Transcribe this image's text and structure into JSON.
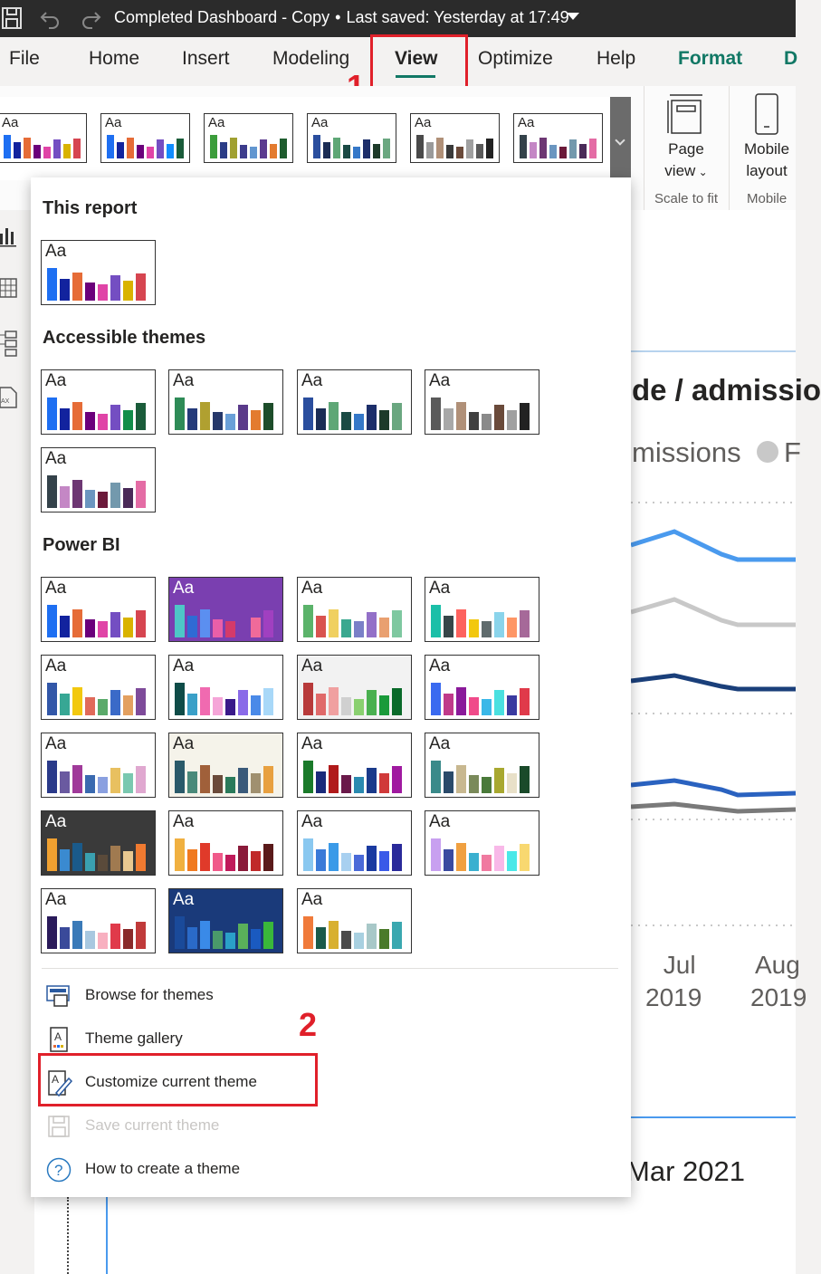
{
  "titlebar": {
    "doc_name": "Completed Dashboard - Copy",
    "separator": "•",
    "saved": "Last saved: Yesterday at 17:49"
  },
  "tabs": [
    {
      "label": "File"
    },
    {
      "label": "Home"
    },
    {
      "label": "Insert"
    },
    {
      "label": "Modeling"
    },
    {
      "label": "View"
    },
    {
      "label": "Optimize"
    },
    {
      "label": "Help"
    },
    {
      "label": "Format"
    },
    {
      "label": "D"
    }
  ],
  "annotations": {
    "step1": "1",
    "step2": "2"
  },
  "ribbon": {
    "page_view": {
      "line1": "Page",
      "line2": "view"
    },
    "mobile_layout": {
      "line1": "Mobile",
      "line2": "layout"
    },
    "group_scale": "Scale to fit",
    "group_mobile": "Mobile"
  },
  "theme_aa": "Aa",
  "ribbon_themes": [
    {
      "bars": [
        "#1e6ff2",
        "#12239e",
        "#e66c37",
        "#6b007b",
        "#e044a7",
        "#744ec2",
        "#d9b300",
        "#d64550"
      ]
    },
    {
      "bars": [
        "#1e6ff2",
        "#12239e",
        "#e66c37",
        "#6b007b",
        "#e044a7",
        "#744ec2",
        "#118dff",
        "#1a5c3a"
      ]
    },
    {
      "bars": [
        "#3b9d3b",
        "#2a3c86",
        "#a0a030",
        "#3c3c8c",
        "#6296d0",
        "#5b3a8f",
        "#e37b2f",
        "#1e5c2e"
      ]
    },
    {
      "bars": [
        "#2a4e9e",
        "#1a2c55",
        "#5ea776",
        "#1a4a44",
        "#3578c8",
        "#1c2e6a",
        "#1d3a2a",
        "#6aa780"
      ]
    },
    {
      "bars": [
        "#4a4a4a",
        "#9a9a9a",
        "#b09078",
        "#3a3a3a",
        "#6a4a3a",
        "#a0a0a0",
        "#5a5a5a",
        "#222222"
      ]
    },
    {
      "bars": [
        "#34424a",
        "#c487c5",
        "#6d3773",
        "#6b96c0",
        "#6b1a3a",
        "#7399ad",
        "#4a2a58",
        "#e46ca5"
      ]
    }
  ],
  "sections": {
    "this_report": "This report",
    "accessible": "Accessible themes",
    "powerbi": "Power BI"
  },
  "themes": {
    "this_report": [
      {
        "bg": "#ffffff",
        "bars": [
          "#1e6ff2",
          "#12239e",
          "#e66c37",
          "#6b007b",
          "#e044a7",
          "#744ec2",
          "#d9b300",
          "#d64550"
        ]
      }
    ],
    "accessible": [
      {
        "bg": "#ffffff",
        "bars": [
          "#1e6ff2",
          "#12239e",
          "#e66c37",
          "#6b007b",
          "#e044a7",
          "#744ec2",
          "#118d4a",
          "#1a5c3a"
        ]
      },
      {
        "bg": "#ffffff",
        "bars": [
          "#2e8b57",
          "#243a7a",
          "#b0a030",
          "#26386a",
          "#6aa0d8",
          "#5a3a8a",
          "#e37b2f",
          "#1d4d2a"
        ]
      },
      {
        "bg": "#ffffff",
        "bars": [
          "#2a4e9e",
          "#1a2c55",
          "#5ea776",
          "#1a4a44",
          "#3578c8",
          "#1c2e6a",
          "#1d3a2a",
          "#6aa780"
        ]
      },
      {
        "bg": "#ffffff",
        "bars": [
          "#5a5a5a",
          "#a8a8a8",
          "#b09078",
          "#404040",
          "#8a8a8a",
          "#6a4a3a",
          "#a0a0a0",
          "#222222"
        ]
      },
      {
        "bg": "#ffffff",
        "bars": [
          "#34424a",
          "#c487c5",
          "#6d3773",
          "#6b96c0",
          "#6b1a3a",
          "#7399ad",
          "#4a2a58",
          "#e46ca5"
        ]
      }
    ],
    "powerbi": [
      {
        "bg": "#ffffff",
        "bars": [
          "#1e6ff2",
          "#12239e",
          "#e66c37",
          "#6b007b",
          "#e044a7",
          "#744ec2",
          "#d9b300",
          "#d64550"
        ]
      },
      {
        "bg": "#7a3fb0",
        "text": "#ffffff",
        "bars": [
          "#4ec7c7",
          "#2f6bd4",
          "#5b8ff0",
          "#ea5fa8",
          "#d43a6a",
          "#7a3fb0",
          "#f06a9a",
          "#a040c0"
        ]
      },
      {
        "bg": "#ffffff",
        "bars": [
          "#5bb36a",
          "#d9534f",
          "#f0d060",
          "#3aa890",
          "#7a80c8",
          "#9370c8",
          "#e9a070",
          "#7ec8a0"
        ]
      },
      {
        "bg": "#ffffff",
        "bars": [
          "#1bbfa8",
          "#374649",
          "#fd625e",
          "#f2c80f",
          "#5f6b6d",
          "#8ad4eb",
          "#fe9666",
          "#a66999"
        ]
      },
      {
        "bg": "#ffffff",
        "bars": [
          "#3257a8",
          "#37a794",
          "#f2c80f",
          "#e06a5a",
          "#5aaa6a",
          "#3a6ac8",
          "#e3a060",
          "#7e4b9a"
        ]
      },
      {
        "bg": "#ffffff",
        "bars": [
          "#0f4c48",
          "#3aa0c8",
          "#f06ab0",
          "#f5a5d8",
          "#3a1a8a",
          "#8a6ae8",
          "#4a8ae8",
          "#a8d8f8"
        ]
      },
      {
        "bg": "#f2f2f2",
        "bars": [
          "#b83a3a",
          "#e06a6a",
          "#f0a0a0",
          "#d0d0d0",
          "#8ad070",
          "#4ab050",
          "#1a9a3a",
          "#0a6a2a"
        ]
      },
      {
        "bg": "#ffffff",
        "bars": [
          "#3a6af0",
          "#c03a8a",
          "#8a1a9a",
          "#f04a8a",
          "#3ab8e8",
          "#4ae0e0",
          "#3a3aa0",
          "#e03a4a"
        ]
      },
      {
        "bg": "#ffffff",
        "bars": [
          "#2a3a8a",
          "#6a5aa0",
          "#a03a9a",
          "#3a6ab0",
          "#8aa0e0",
          "#e8c060",
          "#7ac8b0",
          "#e0a8d0"
        ]
      },
      {
        "bg": "#f5f3ea",
        "bars": [
          "#2a5a6a",
          "#4a8a7a",
          "#a0603a",
          "#6a4a3a",
          "#2a7a5a",
          "#3a5a7a",
          "#a09070",
          "#e8a040"
        ]
      },
      {
        "bg": "#ffffff",
        "bars": [
          "#1a7a2a",
          "#1a2a7a",
          "#b01a1a",
          "#6a1a4a",
          "#2a8ab0",
          "#1a3a8a",
          "#d03a3a",
          "#a01aa0"
        ]
      },
      {
        "bg": "#ffffff",
        "bars": [
          "#3a8a8a",
          "#2a4a6a",
          "#c8b890",
          "#7a8a5a",
          "#4a7a3a",
          "#a8a830",
          "#e8e0c8",
          "#1a4a2a"
        ]
      },
      {
        "bg": "#3a3a3a",
        "text": "#ffffff",
        "bars": [
          "#f0a030",
          "#3a8ad0",
          "#1a5a8a",
          "#3aa0b0",
          "#5a4a3a",
          "#a07a50",
          "#e8c890",
          "#f07a30"
        ]
      },
      {
        "bg": "#ffffff",
        "bars": [
          "#f0b040",
          "#f07a20",
          "#e03a2a",
          "#f05a8a",
          "#c01a5a",
          "#8a1a3a",
          "#c02a2a",
          "#5a1a1a"
        ]
      },
      {
        "bg": "#ffffff",
        "bars": [
          "#8ac8f0",
          "#3a7ad8",
          "#3a9ae8",
          "#a8d0f0",
          "#4a6ad8",
          "#1a3aa0",
          "#3a5ae8",
          "#2a2a9a"
        ]
      },
      {
        "bg": "#ffffff",
        "bars": [
          "#c8a0f0",
          "#3a4aa0",
          "#f0a040",
          "#3ab0d0",
          "#f07aa0",
          "#f8b8e8",
          "#4ae8e8",
          "#f8d870"
        ]
      },
      {
        "bg": "#ffffff",
        "bars": [
          "#2a1a5a",
          "#3a4a9a",
          "#3a7ab8",
          "#a8c8e0",
          "#f8b0c0",
          "#e03a4a",
          "#8a2a2a",
          "#c03a3a"
        ]
      },
      {
        "bg": "#1a3a7a",
        "text": "#ffffff",
        "bars": [
          "#1a4a9a",
          "#2a6ac8",
          "#3a8ae8",
          "#4a9a6a",
          "#2aa0c8",
          "#5ab05a",
          "#1a5ac0",
          "#3ab83a"
        ]
      },
      {
        "bg": "#ffffff",
        "bars": [
          "#f07a3a",
          "#1a5a4a",
          "#d8b030",
          "#4a4a4a",
          "#a8d0e0",
          "#a8c8c8",
          "#4a7a2a",
          "#3aa8b0"
        ]
      }
    ]
  },
  "menu": [
    {
      "label": "Browse for themes",
      "icon": "browse-themes-icon",
      "disabled": false
    },
    {
      "label": "Theme gallery",
      "icon": "theme-gallery-icon",
      "disabled": false
    },
    {
      "label": "Customize current theme",
      "icon": "customize-theme-icon",
      "disabled": false
    },
    {
      "label": "Save current theme",
      "icon": "save-theme-icon",
      "disabled": true
    },
    {
      "label": "How to create a theme",
      "icon": "help-icon",
      "disabled": false
    }
  ],
  "background": {
    "chart_title_fragment": "de / admissio",
    "legend_fragment": "missions",
    "legend_fragment2": "F",
    "x_labels": [
      {
        "month": "Jul",
        "year": "2019"
      },
      {
        "month": "Aug",
        "year": "2019"
      }
    ],
    "bottom_fragment": "Mar 2021"
  }
}
